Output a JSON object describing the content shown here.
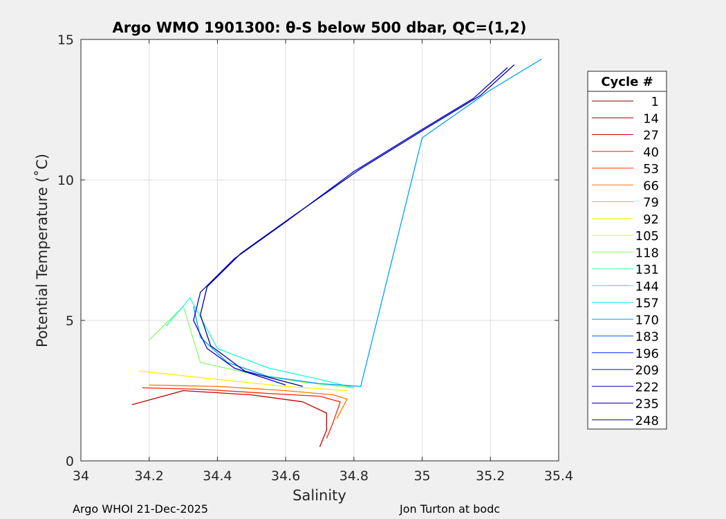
{
  "chart_data": {
    "type": "line",
    "title": "Argo WMO 1901300: θ-S below 500 dbar,  QC=(1,2)",
    "xlabel": "Salinity",
    "ylabel": "Potential Temperature (˚C)",
    "xlim": [
      34,
      35.4
    ],
    "ylim": [
      0,
      15
    ],
    "xticks": [
      "34",
      "34.2",
      "34.4",
      "34.6",
      "34.8",
      "35",
      "35.2",
      "35.4"
    ],
    "yticks": [
      "0",
      "5",
      "10",
      "15"
    ],
    "grid": true,
    "legend": {
      "title": "Cycle #",
      "placement": "right-outside",
      "entries": [
        {
          "label": "1",
          "color": "#7f0000"
        },
        {
          "label": "14",
          "color": "#990000"
        },
        {
          "label": "27",
          "color": "#cc0000"
        },
        {
          "label": "40",
          "color": "#ee1a00"
        },
        {
          "label": "53",
          "color": "#ff3300"
        },
        {
          "label": "66",
          "color": "#ff7000"
        },
        {
          "label": "79",
          "color": "#ffb000"
        },
        {
          "label": "92",
          "color": "#ffee00"
        },
        {
          "label": "105",
          "color": "#ccff33"
        },
        {
          "label": "118",
          "color": "#88ff66"
        },
        {
          "label": "131",
          "color": "#4cff99"
        },
        {
          "label": "144",
          "color": "#19ffcc"
        },
        {
          "label": "157",
          "color": "#00e0ff"
        },
        {
          "label": "170",
          "color": "#009fff"
        },
        {
          "label": "183",
          "color": "#005fff"
        },
        {
          "label": "196",
          "color": "#0020ff"
        },
        {
          "label": "209",
          "color": "#0000e0"
        },
        {
          "label": "222",
          "color": "#0000b0"
        },
        {
          "label": "235",
          "color": "#000080"
        },
        {
          "label": "248",
          "color": "#000090"
        }
      ]
    },
    "series": [
      {
        "group": "early",
        "color": "#c00000",
        "x": [
          34.15,
          34.3,
          34.5,
          34.65,
          34.72,
          34.72,
          34.7
        ],
        "y": [
          2.0,
          2.5,
          2.35,
          2.1,
          1.7,
          1.1,
          0.5
        ]
      },
      {
        "group": "early",
        "color": "#ff2200",
        "x": [
          34.18,
          34.35,
          34.55,
          34.7,
          34.76,
          34.74,
          34.72
        ],
        "y": [
          2.6,
          2.55,
          2.4,
          2.3,
          2.1,
          1.4,
          0.8
        ]
      },
      {
        "group": "early",
        "color": "#ff7700",
        "x": [
          34.2,
          34.4,
          34.6,
          34.74,
          34.78,
          34.75
        ],
        "y": [
          2.7,
          2.65,
          2.5,
          2.35,
          2.2,
          1.5
        ]
      },
      {
        "group": "middle",
        "color": "#ffee00",
        "x": [
          34.17,
          34.4,
          34.6,
          34.78
        ],
        "y": [
          3.2,
          2.9,
          2.65,
          2.5
        ]
      },
      {
        "group": "middle",
        "color": "#88ff66",
        "x": [
          34.2,
          34.3,
          34.35,
          34.5,
          34.65,
          34.8
        ],
        "y": [
          4.3,
          5.5,
          3.5,
          3.1,
          2.8,
          2.6
        ]
      },
      {
        "group": "middle",
        "color": "#19ffcc",
        "x": [
          34.25,
          34.32,
          34.4,
          34.55,
          34.7,
          34.8
        ],
        "y": [
          4.8,
          5.8,
          4.0,
          3.3,
          2.9,
          2.6
        ]
      },
      {
        "group": "late",
        "color": "#009fff",
        "x": [
          34.33,
          34.35,
          34.43,
          34.55,
          34.7,
          34.82,
          35.0,
          35.2,
          35.35
        ],
        "y": [
          5.5,
          4.4,
          3.5,
          3.0,
          2.75,
          2.65,
          11.5,
          13.2,
          14.3
        ]
      },
      {
        "group": "late",
        "color": "#0000d0",
        "x": [
          34.6,
          34.45,
          34.37,
          34.33,
          34.35,
          34.45,
          34.6,
          34.8,
          35.0,
          35.15,
          35.25
        ],
        "y": [
          2.7,
          3.3,
          4.0,
          5.0,
          6.0,
          7.2,
          8.5,
          10.3,
          11.8,
          12.9,
          14.0
        ]
      },
      {
        "group": "late",
        "color": "#000090",
        "x": [
          34.65,
          34.48,
          34.38,
          34.35,
          34.37,
          34.47,
          34.62,
          34.82,
          35.02,
          35.17,
          35.27
        ],
        "y": [
          2.65,
          3.2,
          4.1,
          5.2,
          6.2,
          7.4,
          8.7,
          10.4,
          11.9,
          13.0,
          14.1
        ]
      }
    ]
  },
  "footer": {
    "left": "Argo WHOI 21-Dec-2025",
    "right": "Jon Turton at bodc"
  }
}
